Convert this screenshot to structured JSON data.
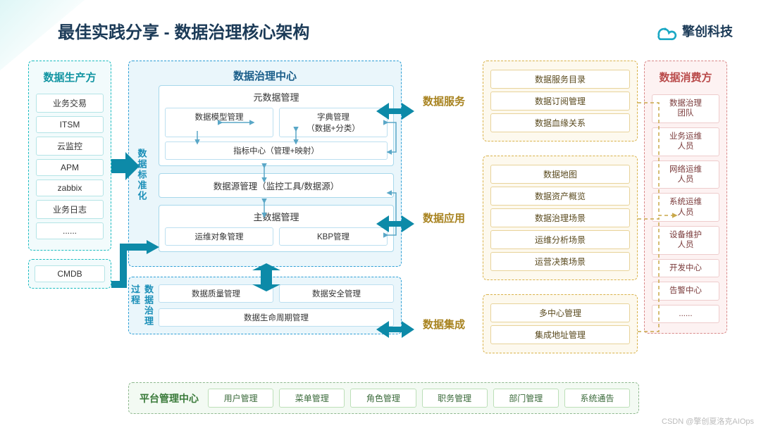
{
  "meta": {
    "title": "最佳实践分享 - 数据治理核心架构",
    "brand": "擎创科技",
    "watermark": "CSDN @擎创夏洛克AIOps",
    "colors": {
      "teal_border": "#1bbcc0",
      "teal_bg": "#f2fbfc",
      "blue_border": "#2e9fd6",
      "blue_bg": "#eaf6fb",
      "gold_border": "#d9b24a",
      "gold_bg": "#fdf9ee",
      "red_border": "#d98a8a",
      "red_bg": "#fdf2f2",
      "green_border": "#8fb88f",
      "green_bg": "#f3faf3",
      "arrow_thick": "#0d8aa8",
      "title_color": "#1b3a57"
    }
  },
  "producers": {
    "title": "数据生产方",
    "items": [
      "业务交易",
      "ITSM",
      "云监控",
      "APM",
      "zabbix",
      "业务日志",
      "......"
    ],
    "cmdb": "CMDB"
  },
  "center": {
    "title": "数据治理中心",
    "std_label": "数据标准化",
    "meta_mgmt": {
      "title": "元数据管理",
      "cells": {
        "model": "数据模型管理",
        "dict": "字典管理\n（数据+分类）",
        "indicator": "指标中心（管理+映射）"
      }
    },
    "source_mgmt": "数据源管理（监控工具/数据源）",
    "master_mgmt": {
      "title": "主数据管理",
      "ops": "运维对象管理",
      "kbp": "KBP管理"
    },
    "proc_label": "数据治理过程",
    "proc": {
      "quality": "数据质量管理",
      "security": "数据安全管理",
      "lifecycle": "数据生命周期管理"
    }
  },
  "right": {
    "service": {
      "title": "数据服务",
      "items": [
        "数据服务目录",
        "数据订阅管理",
        "数据血缘关系"
      ]
    },
    "app": {
      "title": "数据应用",
      "items": [
        "数据地图",
        "数据资产概览",
        "数据治理场景",
        "运维分析场景",
        "运营决策场景"
      ]
    },
    "integ": {
      "title": "数据集成",
      "items": [
        "多中心管理",
        "集成地址管理"
      ]
    }
  },
  "consumers": {
    "title": "数据消费方",
    "items": [
      "数据治理\n团队",
      "业务运维\n人员",
      "网络运维\n人员",
      "系统运维\n人员",
      "设备维护\n人员",
      "开发中心",
      "告警中心",
      "......"
    ]
  },
  "platform": {
    "title": "平台管理中心",
    "items": [
      "用户管理",
      "菜单管理",
      "角色管理",
      "职务管理",
      "部门管理",
      "系统通告"
    ]
  }
}
